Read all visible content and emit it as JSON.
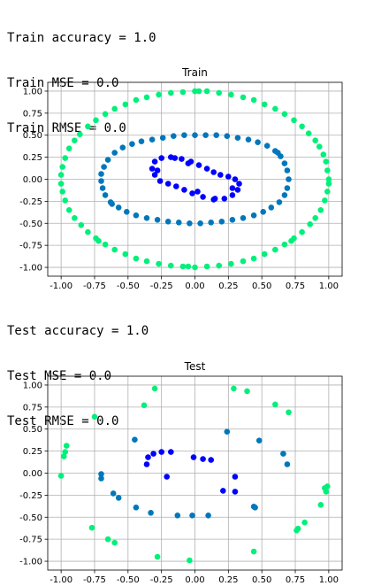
{
  "train_output": [
    "Train accuracy = 1.0",
    "Train MSE = 0.0",
    "Train RMSE = 0.0"
  ],
  "test_output": [
    "Test accuracy = 1.0",
    "Test MSE = 0.0",
    "Test RMSE = 0.0"
  ],
  "colors": {
    "inner": "#0000ff",
    "middle": "#0077bb",
    "outer": "#00f07a"
  },
  "chart_data": [
    {
      "type": "scatter",
      "title": "Train",
      "xlim": [
        -1.1,
        1.1
      ],
      "ylim": [
        -1.1,
        1.1
      ],
      "xticks": [
        "-1.00",
        "-0.75",
        "-0.50",
        "-0.25",
        "0.00",
        "0.25",
        "0.50",
        "0.75",
        "1.00"
      ],
      "yticks": [
        "1.00",
        "0.75",
        "0.50",
        "0.25",
        "0.00",
        "-0.25",
        "-0.50",
        "-0.75",
        "-1.00"
      ],
      "grid": true,
      "series": [
        {
          "color": "outer",
          "points": [
            [
              1.0,
              0.0
            ],
            [
              0.99,
              0.1
            ],
            [
              0.98,
              0.2
            ],
            [
              0.96,
              0.28
            ],
            [
              0.93,
              0.37
            ],
            [
              0.9,
              0.44
            ],
            [
              0.85,
              0.52
            ],
            [
              0.8,
              0.6
            ],
            [
              0.74,
              0.67
            ],
            [
              0.67,
              0.74
            ],
            [
              0.6,
              0.8
            ],
            [
              0.52,
              0.85
            ],
            [
              0.44,
              0.9
            ],
            [
              0.36,
              0.93
            ],
            [
              0.27,
              0.96
            ],
            [
              0.18,
              0.98
            ],
            [
              0.09,
              1.0
            ],
            [
              0.0,
              1.0
            ],
            [
              -0.09,
              0.99
            ],
            [
              -0.18,
              0.98
            ],
            [
              -0.27,
              0.96
            ],
            [
              -0.36,
              0.93
            ],
            [
              -0.44,
              0.9
            ],
            [
              -0.52,
              0.85
            ],
            [
              -0.6,
              0.8
            ],
            [
              -0.67,
              0.74
            ],
            [
              -0.74,
              0.67
            ],
            [
              -0.8,
              0.6
            ],
            [
              -0.86,
              0.51
            ],
            [
              -0.9,
              0.44
            ],
            [
              -0.94,
              0.35
            ],
            [
              -0.97,
              0.24
            ],
            [
              -0.99,
              0.14
            ],
            [
              -1.0,
              0.05
            ],
            [
              -1.0,
              -0.05
            ],
            [
              -0.99,
              -0.14
            ],
            [
              -0.97,
              -0.24
            ],
            [
              -0.94,
              -0.35
            ],
            [
              -0.9,
              -0.44
            ],
            [
              -0.85,
              -0.52
            ],
            [
              -0.8,
              -0.6
            ],
            [
              -0.74,
              -0.67
            ],
            [
              -0.67,
              -0.74
            ],
            [
              -0.6,
              -0.8
            ],
            [
              -0.52,
              -0.85
            ],
            [
              -0.44,
              -0.9
            ],
            [
              -0.36,
              -0.93
            ],
            [
              -0.27,
              -0.96
            ],
            [
              -0.18,
              -0.98
            ],
            [
              -0.09,
              -0.99
            ],
            [
              0.0,
              -1.0
            ],
            [
              0.09,
              -0.99
            ],
            [
              0.18,
              -0.98
            ],
            [
              0.27,
              -0.96
            ],
            [
              0.36,
              -0.93
            ],
            [
              0.44,
              -0.9
            ],
            [
              0.52,
              -0.85
            ],
            [
              0.6,
              -0.8
            ],
            [
              0.67,
              -0.74
            ],
            [
              0.74,
              -0.67
            ],
            [
              0.8,
              -0.6
            ],
            [
              0.86,
              -0.51
            ],
            [
              0.9,
              -0.44
            ],
            [
              0.94,
              -0.35
            ],
            [
              0.97,
              -0.24
            ],
            [
              0.99,
              -0.14
            ],
            [
              1.0,
              -0.05
            ],
            [
              0.72,
              -0.7
            ],
            [
              -0.72,
              -0.7
            ],
            [
              0.03,
              1.0
            ],
            [
              -0.05,
              -0.99
            ]
          ]
        },
        {
          "color": "middle",
          "points": [
            [
              0.7,
              0.0
            ],
            [
              0.69,
              0.1
            ],
            [
              0.67,
              0.18
            ],
            [
              0.64,
              0.26
            ],
            [
              0.6,
              0.32
            ],
            [
              0.54,
              0.38
            ],
            [
              0.47,
              0.42
            ],
            [
              0.4,
              0.45
            ],
            [
              0.32,
              0.47
            ],
            [
              0.24,
              0.49
            ],
            [
              0.16,
              0.5
            ],
            [
              0.08,
              0.5
            ],
            [
              0.0,
              0.5
            ],
            [
              -0.08,
              0.5
            ],
            [
              -0.16,
              0.49
            ],
            [
              -0.24,
              0.47
            ],
            [
              -0.32,
              0.45
            ],
            [
              -0.4,
              0.43
            ],
            [
              -0.47,
              0.4
            ],
            [
              -0.54,
              0.36
            ],
            [
              -0.6,
              0.3
            ],
            [
              -0.65,
              0.22
            ],
            [
              -0.68,
              0.14
            ],
            [
              -0.7,
              0.06
            ],
            [
              -0.7,
              -0.02
            ],
            [
              -0.69,
              -0.1
            ],
            [
              -0.67,
              -0.18
            ],
            [
              -0.63,
              -0.26
            ],
            [
              -0.57,
              -0.32
            ],
            [
              -0.51,
              -0.37
            ],
            [
              -0.44,
              -0.41
            ],
            [
              -0.36,
              -0.44
            ],
            [
              -0.28,
              -0.46
            ],
            [
              -0.2,
              -0.48
            ],
            [
              -0.12,
              -0.49
            ],
            [
              -0.04,
              -0.5
            ],
            [
              0.04,
              -0.5
            ],
            [
              0.12,
              -0.49
            ],
            [
              0.2,
              -0.48
            ],
            [
              0.28,
              -0.46
            ],
            [
              0.36,
              -0.44
            ],
            [
              0.44,
              -0.41
            ],
            [
              0.51,
              -0.37
            ],
            [
              0.57,
              -0.32
            ],
            [
              0.63,
              -0.26
            ],
            [
              0.67,
              -0.18
            ],
            [
              0.69,
              -0.1
            ],
            [
              0.62,
              0.3
            ],
            [
              -0.62,
              -0.28
            ]
          ]
        },
        {
          "color": "inner",
          "points": [
            [
              -0.3,
              0.05
            ],
            [
              -0.32,
              0.12
            ],
            [
              -0.3,
              0.2
            ],
            [
              -0.25,
              0.24
            ],
            [
              -0.18,
              0.25
            ],
            [
              -0.1,
              0.23
            ],
            [
              -0.03,
              0.2
            ],
            [
              0.03,
              0.16
            ],
            [
              0.09,
              0.12
            ],
            [
              0.14,
              0.08
            ],
            [
              0.19,
              0.05
            ],
            [
              0.25,
              0.03
            ],
            [
              0.3,
              0.0
            ],
            [
              0.33,
              -0.05
            ],
            [
              0.32,
              -0.12
            ],
            [
              0.28,
              -0.18
            ],
            [
              0.22,
              -0.22
            ],
            [
              0.14,
              -0.23
            ],
            [
              0.06,
              -0.2
            ],
            [
              -0.02,
              -0.16
            ],
            [
              -0.08,
              -0.12
            ],
            [
              -0.14,
              -0.08
            ],
            [
              -0.2,
              -0.05
            ],
            [
              -0.26,
              -0.02
            ],
            [
              -0.28,
              0.1
            ],
            [
              0.28,
              -0.1
            ],
            [
              -0.15,
              0.24
            ],
            [
              0.15,
              -0.22
            ],
            [
              0.02,
              -0.14
            ],
            [
              -0.05,
              0.18
            ]
          ]
        }
      ]
    },
    {
      "type": "scatter",
      "title": "Test",
      "xlim": [
        -1.1,
        1.1
      ],
      "ylim": [
        -1.1,
        1.1
      ],
      "xticks": [
        "-1.00",
        "-0.75",
        "-0.50",
        "-0.25",
        "0.00",
        "0.25",
        "0.50",
        "0.75",
        "1.00"
      ],
      "yticks": [
        "1.00",
        "0.75",
        "0.50",
        "0.25",
        "0.00",
        "-0.25",
        "-0.50",
        "-0.75",
        "-1.00"
      ],
      "grid": true,
      "series": [
        {
          "color": "outer",
          "points": [
            [
              -0.3,
              0.96
            ],
            [
              0.29,
              0.96
            ],
            [
              0.39,
              0.93
            ],
            [
              0.7,
              0.69
            ],
            [
              0.6,
              0.78
            ],
            [
              -0.38,
              0.77
            ],
            [
              -0.75,
              0.64
            ],
            [
              -0.96,
              0.31
            ],
            [
              -0.97,
              0.24
            ],
            [
              -0.98,
              0.19
            ],
            [
              -1.0,
              -0.03
            ],
            [
              0.97,
              -0.17
            ],
            [
              0.99,
              -0.15
            ],
            [
              0.98,
              -0.21
            ],
            [
              0.94,
              -0.36
            ],
            [
              0.82,
              -0.56
            ],
            [
              0.77,
              -0.63
            ],
            [
              0.76,
              -0.65
            ],
            [
              -0.77,
              -0.62
            ],
            [
              -0.65,
              -0.75
            ],
            [
              -0.6,
              -0.79
            ],
            [
              -0.28,
              -0.95
            ],
            [
              -0.04,
              -0.99
            ],
            [
              0.44,
              -0.89
            ]
          ]
        },
        {
          "color": "middle",
          "points": [
            [
              -0.45,
              0.38
            ],
            [
              0.24,
              0.47
            ],
            [
              0.48,
              0.37
            ],
            [
              0.66,
              0.22
            ],
            [
              0.69,
              0.1
            ],
            [
              -0.7,
              -0.01
            ],
            [
              -0.7,
              -0.06
            ],
            [
              -0.61,
              -0.23
            ],
            [
              -0.57,
              -0.28
            ],
            [
              -0.44,
              -0.39
            ],
            [
              -0.33,
              -0.45
            ],
            [
              -0.13,
              -0.48
            ],
            [
              -0.02,
              -0.48
            ],
            [
              0.1,
              -0.48
            ],
            [
              0.44,
              -0.38
            ],
            [
              0.45,
              -0.39
            ]
          ]
        },
        {
          "color": "inner",
          "points": [
            [
              -0.35,
              0.18
            ],
            [
              -0.31,
              0.22
            ],
            [
              -0.25,
              0.24
            ],
            [
              -0.18,
              0.24
            ],
            [
              -0.01,
              0.18
            ],
            [
              0.06,
              0.16
            ],
            [
              0.12,
              0.15
            ],
            [
              -0.36,
              0.1
            ],
            [
              -0.21,
              -0.04
            ],
            [
              0.3,
              -0.04
            ],
            [
              0.21,
              -0.2
            ],
            [
              0.3,
              -0.21
            ]
          ]
        }
      ]
    }
  ]
}
